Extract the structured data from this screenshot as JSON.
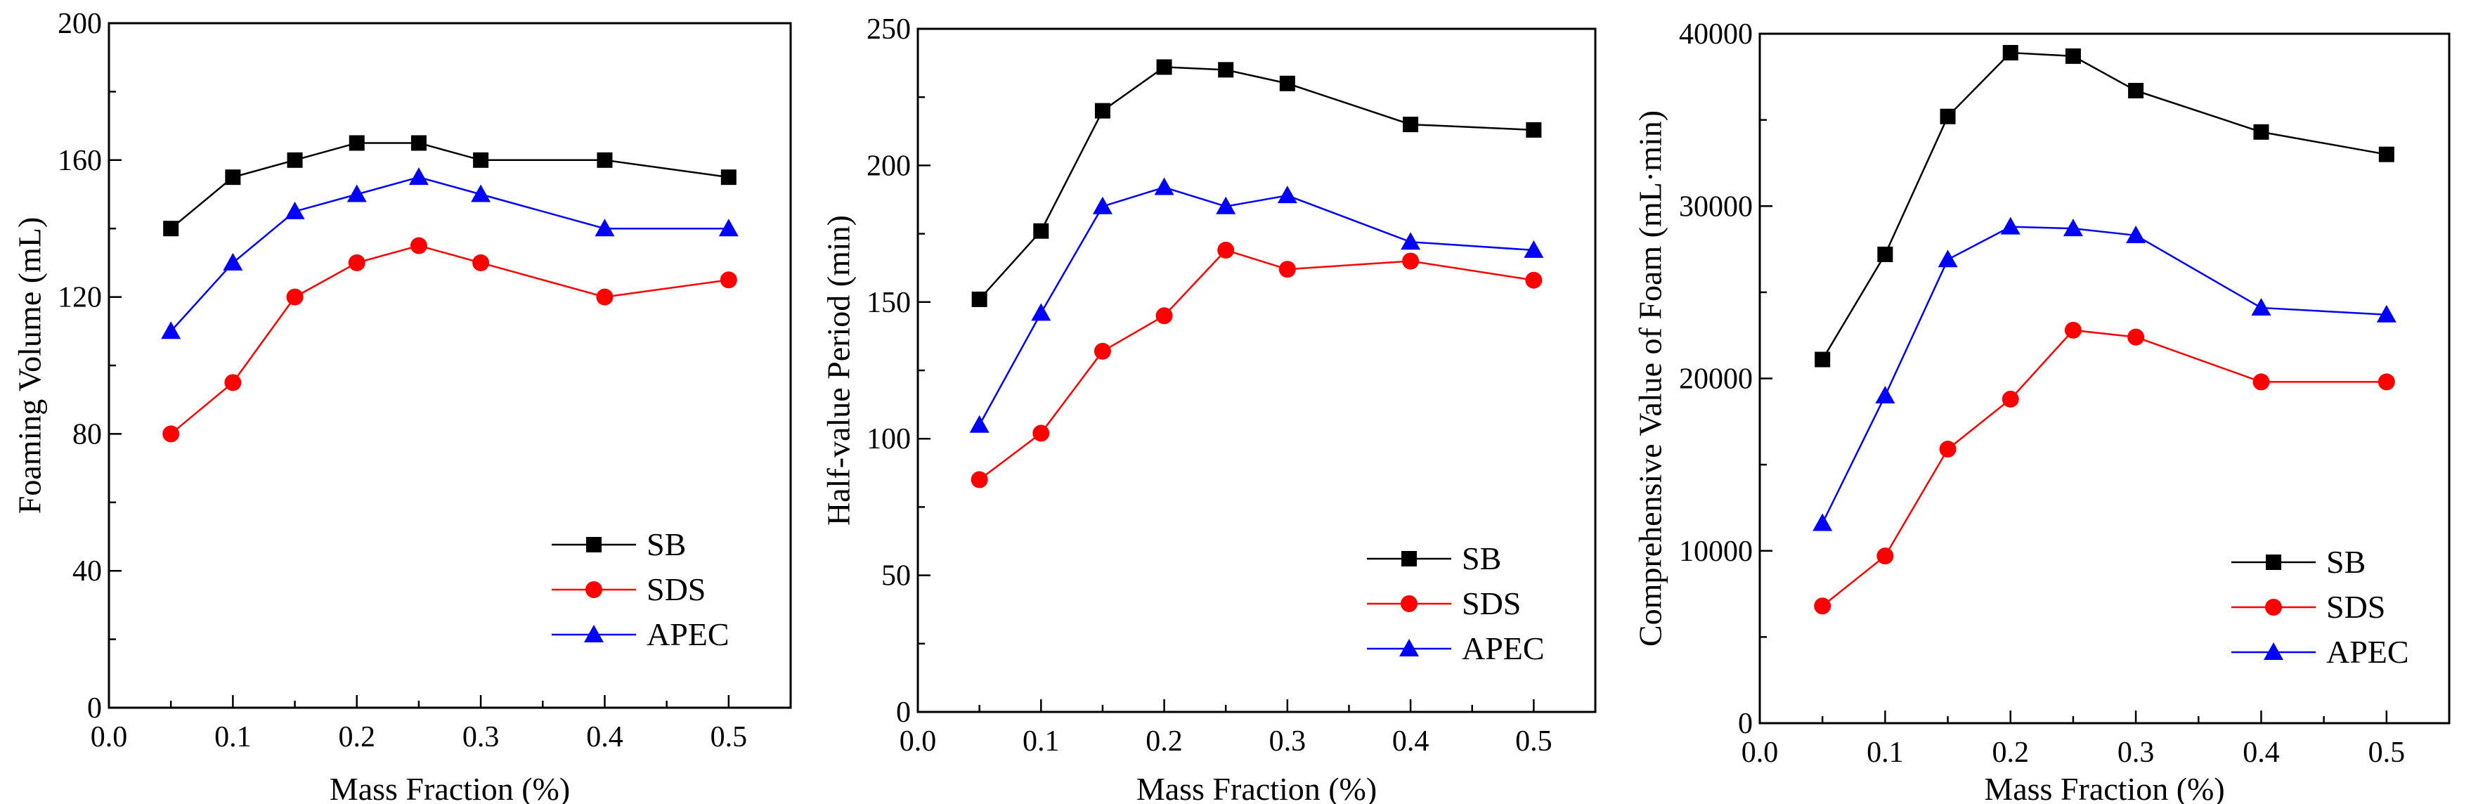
{
  "chart_data": [
    {
      "type": "line",
      "xlabel": "Mass Fraction (%)",
      "ylabel": "Foaming Volume (mL)",
      "xlim": [
        0,
        0.55
      ],
      "ylim": [
        0,
        200
      ],
      "xticks": [
        "0.0",
        "0.1",
        "0.2",
        "0.3",
        "0.4",
        "0.5"
      ],
      "yticks": [
        "0",
        "40",
        "80",
        "120",
        "160",
        "200"
      ],
      "ytick_values": [
        0,
        40,
        80,
        120,
        160,
        200
      ],
      "legend_position": "bottom-right",
      "x": [
        0.05,
        0.1,
        0.15,
        0.2,
        0.25,
        0.3,
        0.4,
        0.5
      ],
      "series": [
        {
          "name": "SB",
          "color": "#000000",
          "marker": "square",
          "values": [
            140,
            155,
            160,
            165,
            165,
            160,
            160,
            155
          ]
        },
        {
          "name": "SDS",
          "color": "#ff0000",
          "marker": "circle",
          "values": [
            80,
            95,
            120,
            130,
            135,
            130,
            120,
            125
          ]
        },
        {
          "name": "APEC",
          "color": "#0000ff",
          "marker": "triangle",
          "values": [
            110,
            130,
            145,
            150,
            155,
            150,
            140,
            140
          ]
        }
      ]
    },
    {
      "type": "line",
      "xlabel": "Mass Fraction (%)",
      "ylabel": "Half-value Period (min)",
      "xlim": [
        0,
        0.55
      ],
      "ylim": [
        0,
        250
      ],
      "xticks": [
        "0.0",
        "0.1",
        "0.2",
        "0.3",
        "0.4",
        "0.5"
      ],
      "yticks": [
        "0",
        "50",
        "100",
        "150",
        "200",
        "250"
      ],
      "ytick_values": [
        0,
        50,
        100,
        150,
        200,
        250
      ],
      "legend_position": "bottom-right",
      "x": [
        0.05,
        0.1,
        0.15,
        0.2,
        0.25,
        0.3,
        0.4,
        0.5
      ],
      "series": [
        {
          "name": "SB",
          "color": "#000000",
          "marker": "square",
          "values": [
            151,
            176,
            220,
            236,
            235,
            230,
            215,
            213
          ]
        },
        {
          "name": "SDS",
          "color": "#ff0000",
          "marker": "circle",
          "values": [
            85,
            102,
            132,
            145,
            169,
            162,
            165,
            158
          ]
        },
        {
          "name": "APEC",
          "color": "#0000ff",
          "marker": "triangle",
          "values": [
            105,
            146,
            185,
            192,
            185,
            189,
            172,
            169
          ]
        }
      ]
    },
    {
      "type": "line",
      "xlabel": "Mass Fraction (%)",
      "ylabel": "Comprehensive Value of Foam (mL·min)",
      "xlim": [
        0,
        0.55
      ],
      "ylim": [
        0,
        40000
      ],
      "xticks": [
        "0.0",
        "0.1",
        "0.2",
        "0.3",
        "0.4",
        "0.5"
      ],
      "yticks": [
        "0",
        "10000",
        "20000",
        "30000",
        "40000"
      ],
      "ytick_values": [
        0,
        10000,
        20000,
        30000,
        40000
      ],
      "legend_position": "bottom-right",
      "x": [
        0.05,
        0.1,
        0.15,
        0.2,
        0.25,
        0.3,
        0.4,
        0.5
      ],
      "series": [
        {
          "name": "SB",
          "color": "#000000",
          "marker": "square",
          "values": [
            21100,
            27200,
            35200,
            38900,
            38700,
            36700,
            34300,
            33000
          ]
        },
        {
          "name": "SDS",
          "color": "#ff0000",
          "marker": "circle",
          "values": [
            6800,
            9700,
            15900,
            18800,
            22800,
            22400,
            19800,
            19800
          ]
        },
        {
          "name": "APEC",
          "color": "#0000ff",
          "marker": "triangle",
          "values": [
            11600,
            19000,
            26900,
            28800,
            28700,
            28300,
            24100,
            23700
          ]
        }
      ]
    }
  ]
}
